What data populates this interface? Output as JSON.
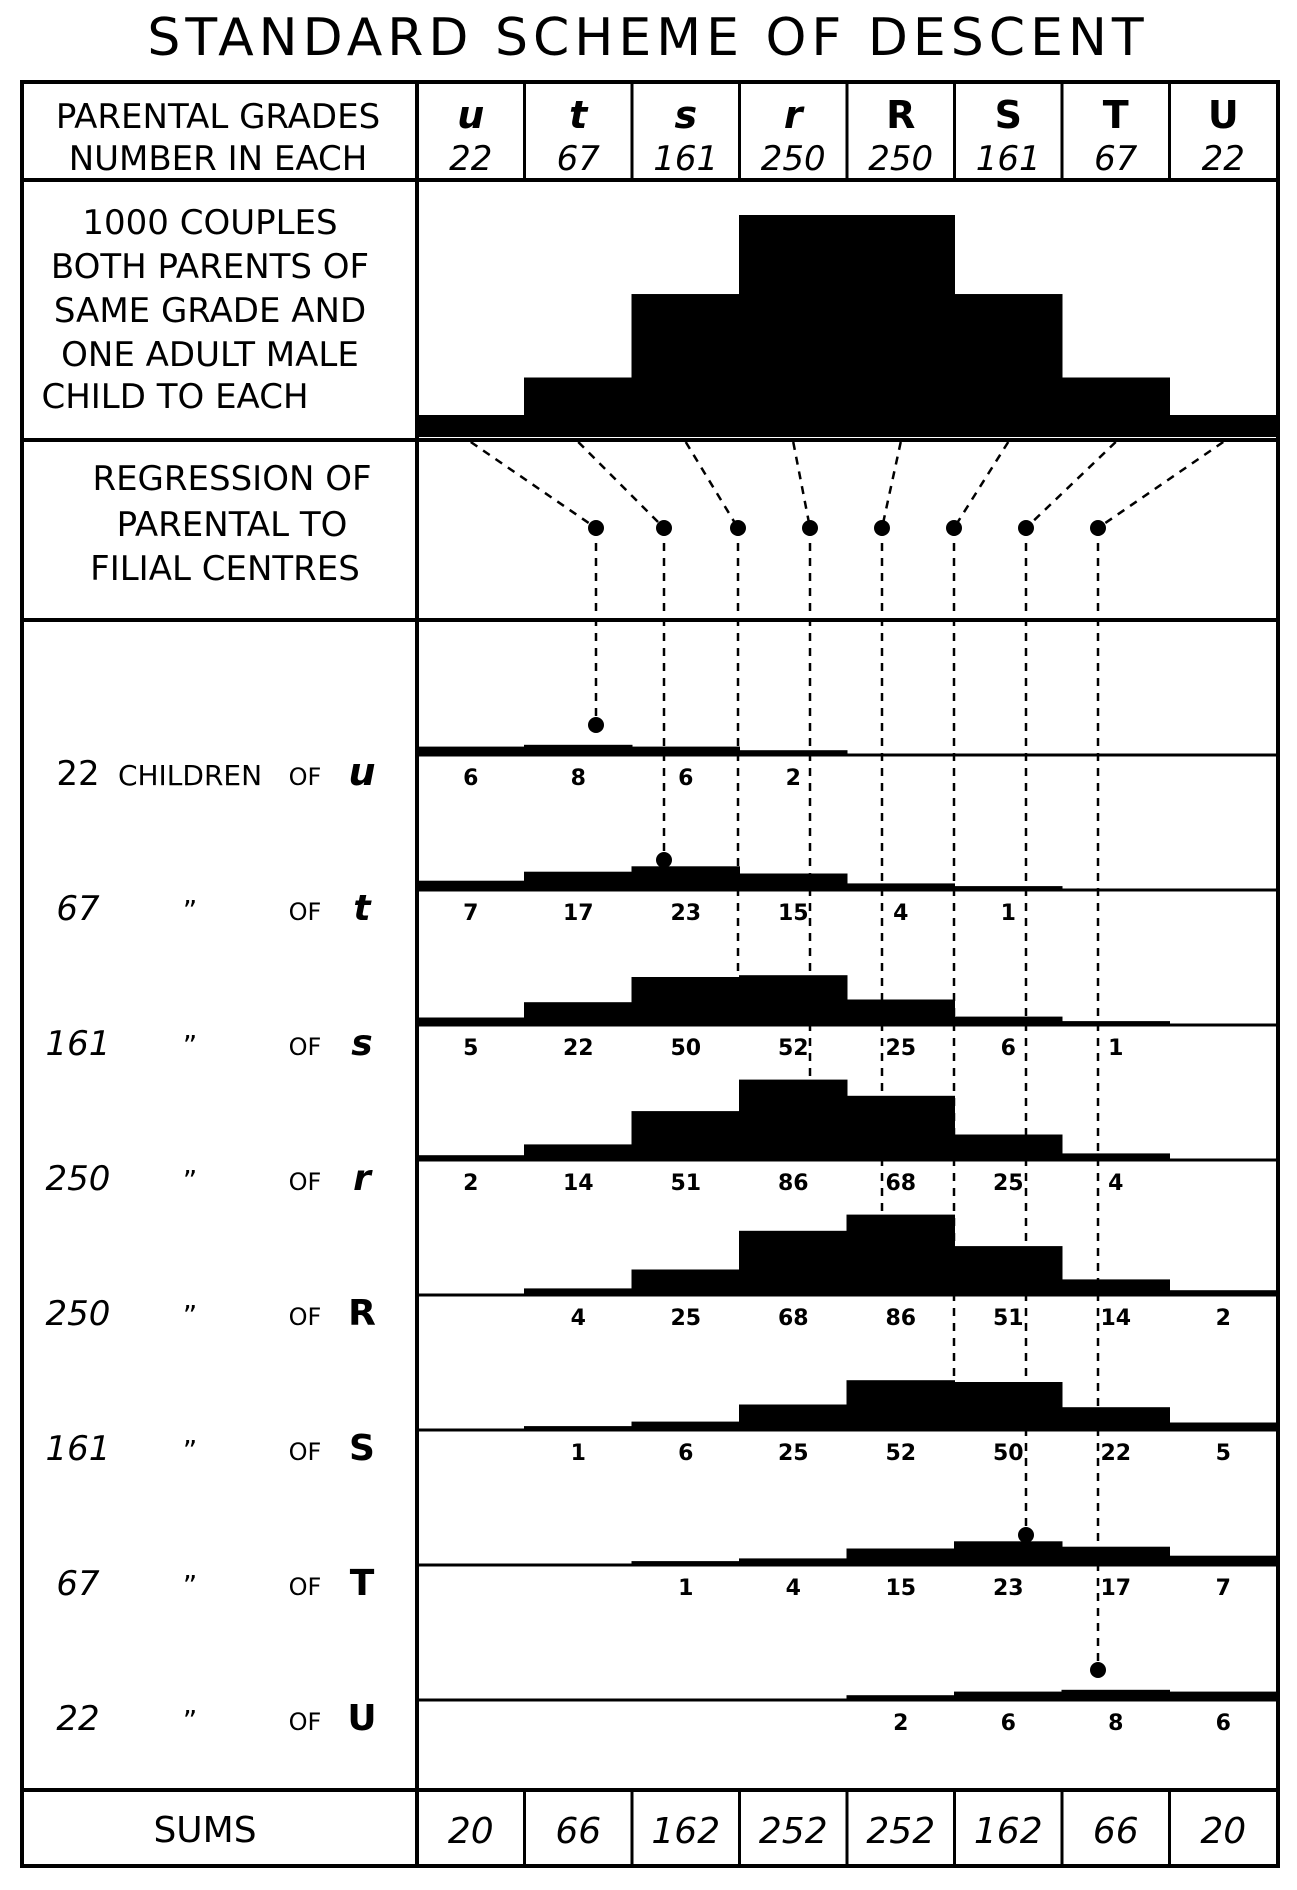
{
  "title": "STANDARD SCHEME OF DESCENT",
  "header": {
    "row1_label": "PARENTAL GRADES",
    "row2_label": "NUMBER IN EACH",
    "grades": [
      "u",
      "t",
      "s",
      "r",
      "R",
      "S",
      "T",
      "U"
    ],
    "counts": [
      "22",
      "67",
      "161",
      "250",
      "250",
      "161",
      "67",
      "22"
    ]
  },
  "couples_label": [
    "1000 COUPLES",
    "BOTH PARENTS OF",
    "SAME GRADE AND",
    "ONE ADULT MALE",
    "CHILD TO EACH"
  ],
  "regression_label": [
    "REGRESSION OF",
    "PARENTAL TO",
    "FILIAL CENTRES"
  ],
  "children_word": "CHILDREN",
  "of_word": "OF",
  "ditto": "”",
  "rows": [
    {
      "count": "22",
      "grade": "u",
      "values": [
        "6",
        "8",
        "6",
        "2",
        "",
        "",
        "",
        ""
      ]
    },
    {
      "count": "67",
      "grade": "t",
      "values": [
        "7",
        "17",
        "23",
        "15",
        "4",
        "1",
        "",
        ""
      ]
    },
    {
      "count": "161",
      "grade": "s",
      "values": [
        "5",
        "22",
        "50",
        "52",
        "25",
        "6",
        "1",
        ""
      ]
    },
    {
      "count": "250",
      "grade": "r",
      "values": [
        "2",
        "14",
        "51",
        "86",
        "68",
        "25",
        "4",
        ""
      ]
    },
    {
      "count": "250",
      "grade": "R",
      "values": [
        "",
        "4",
        "25",
        "68",
        "86",
        "51",
        "14",
        "2"
      ]
    },
    {
      "count": "161",
      "grade": "S",
      "values": [
        "",
        "1",
        "6",
        "25",
        "52",
        "50",
        "22",
        "5"
      ]
    },
    {
      "count": "67",
      "grade": "T",
      "values": [
        "",
        "",
        "1",
        "4",
        "15",
        "23",
        "17",
        "7"
      ]
    },
    {
      "count": "22",
      "grade": "U",
      "values": [
        "",
        "",
        "",
        "",
        "2",
        "6",
        "8",
        "6"
      ]
    }
  ],
  "sums_label": "SUMS",
  "sums": [
    "20",
    "66",
    "162",
    "252",
    "252",
    "162",
    "66",
    "20"
  ]
}
